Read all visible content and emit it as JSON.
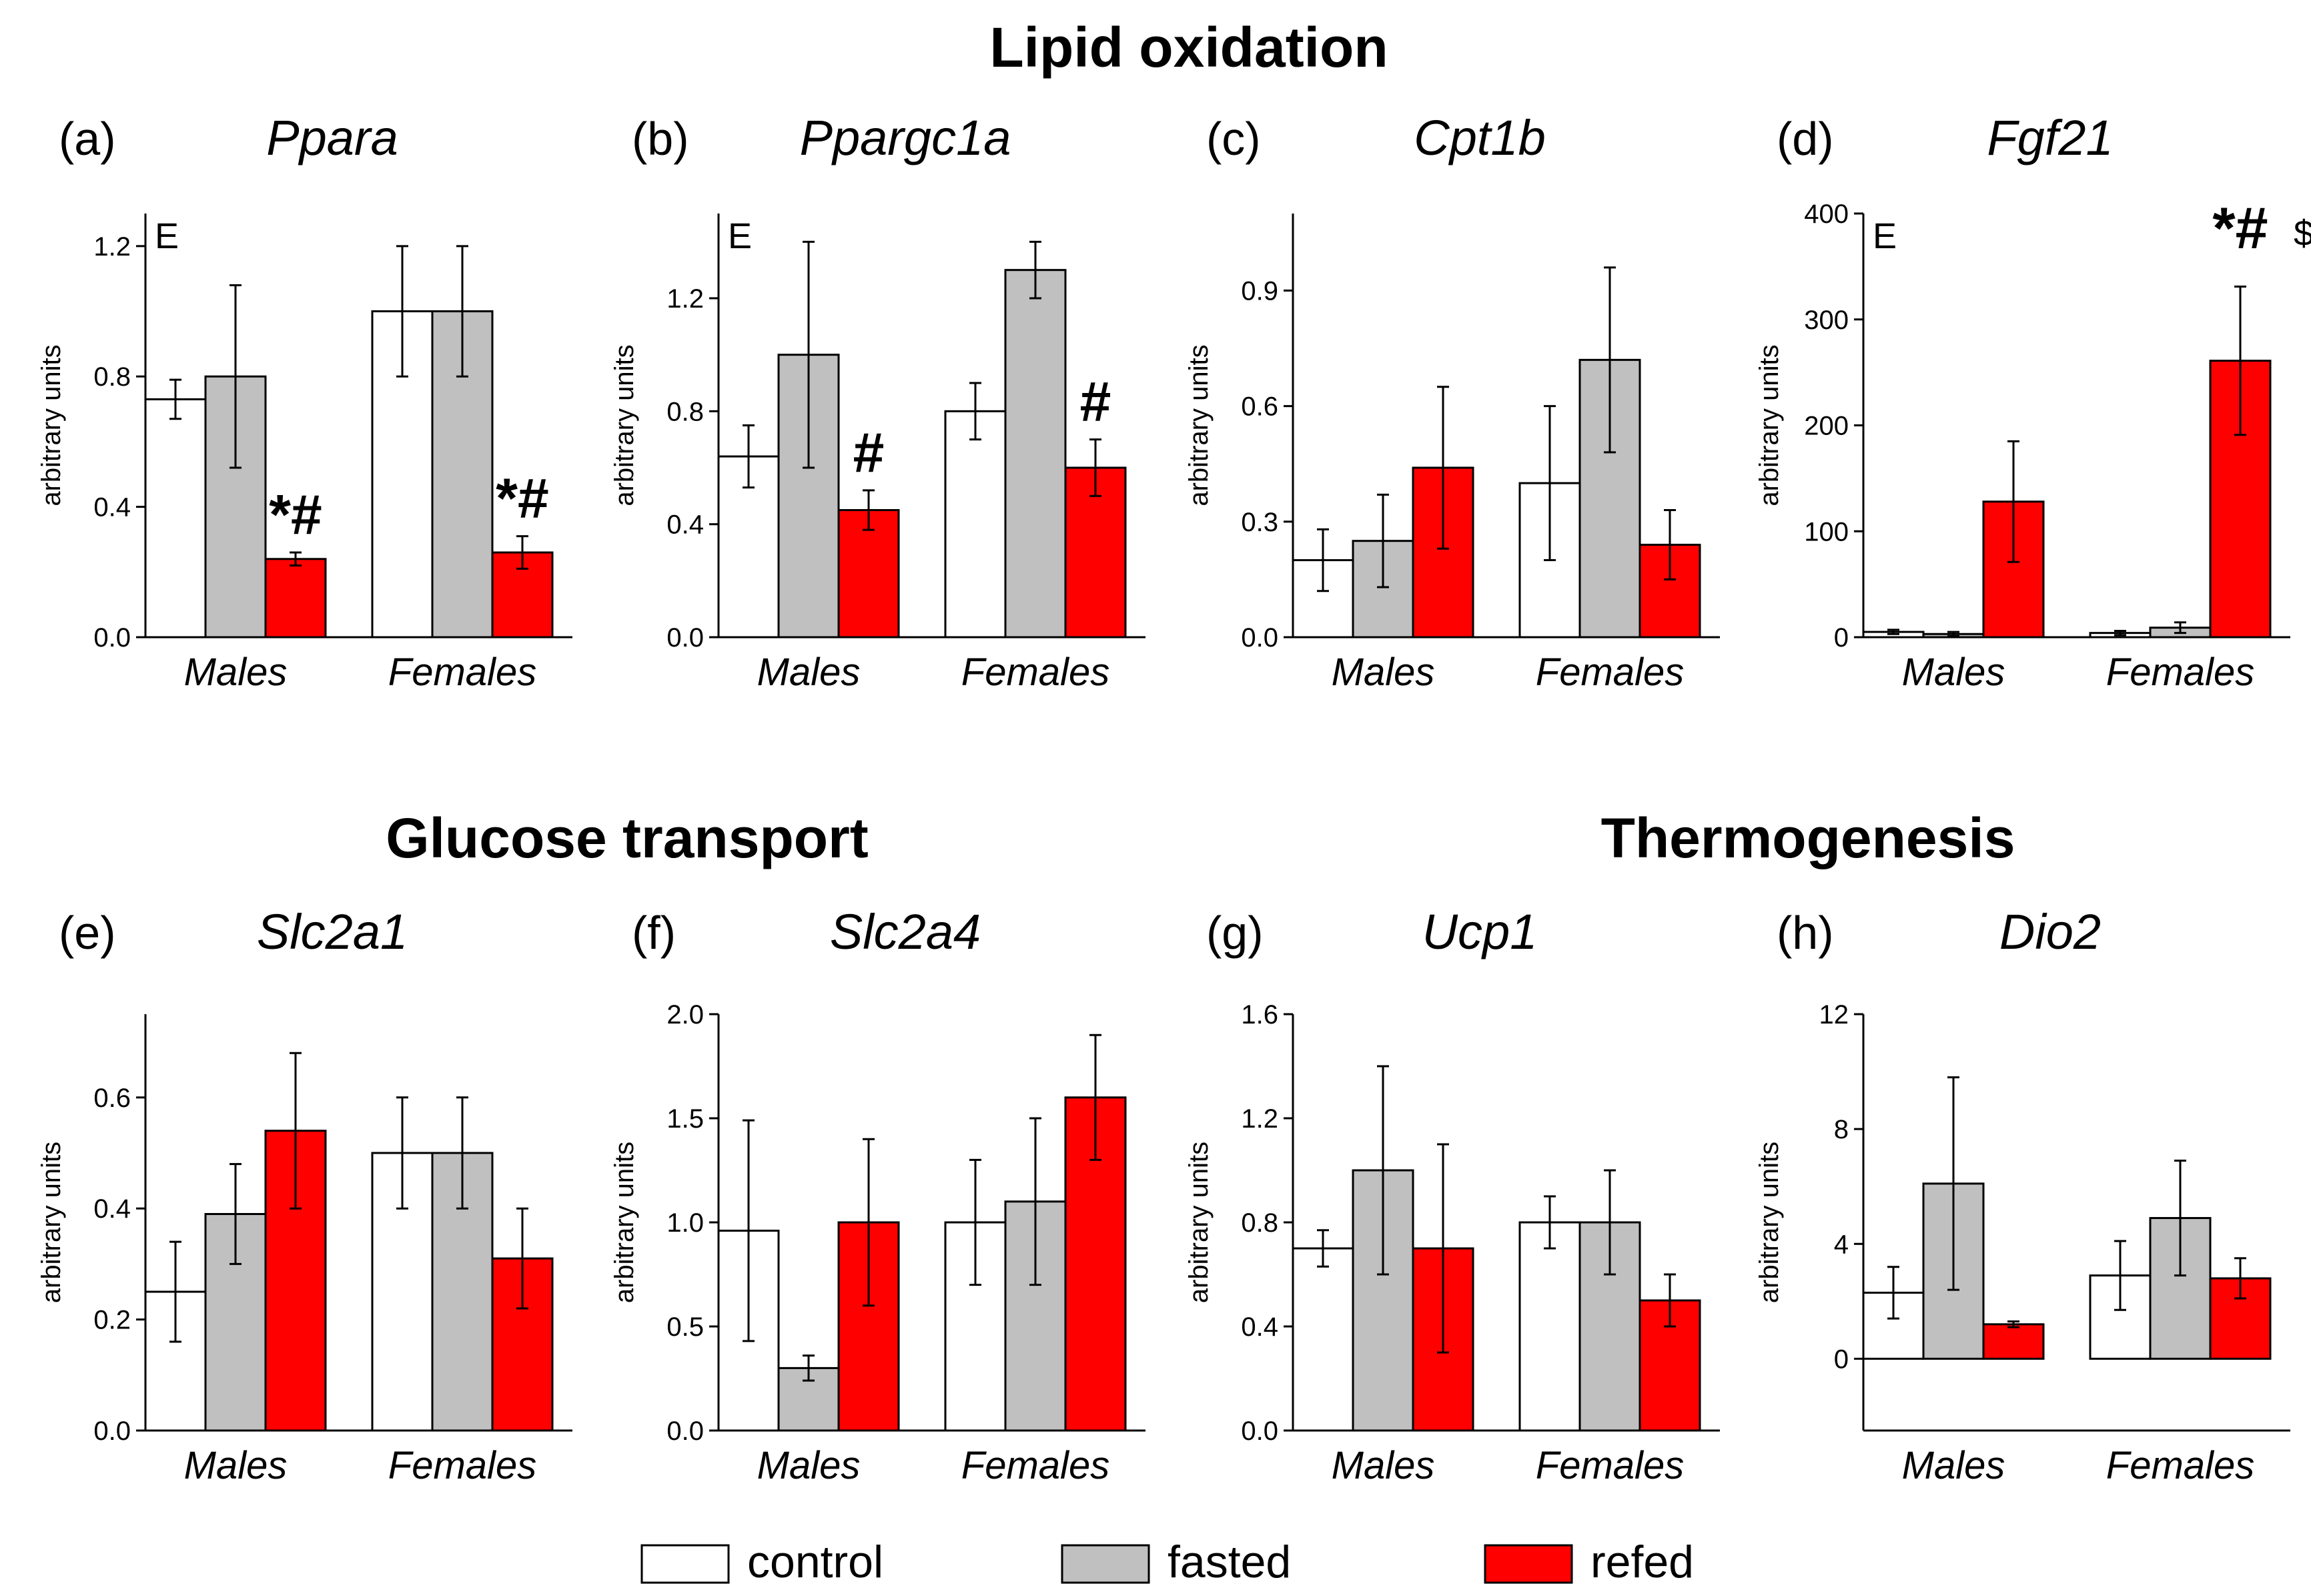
{
  "sections": {
    "lipid": "Lipid oxidation",
    "glucose": "Glucose transport",
    "thermo": "Thermogenesis"
  },
  "y_axis_label": "arbitrary units",
  "legend": [
    {
      "label": "control",
      "color": "#ffffff"
    },
    {
      "label": "fasted",
      "color": "#c0c0c0"
    },
    {
      "label": "refed",
      "color": "#ff0000"
    }
  ],
  "chart_data": [
    {
      "panel": "(a)",
      "title": "Ppara",
      "type": "bar",
      "categories": [
        "Males",
        "Females"
      ],
      "ylim": [
        0,
        1.3
      ],
      "yticks": [
        "0.0",
        "0.4",
        "0.8",
        "1.2"
      ],
      "effect_label": "E",
      "series": [
        {
          "name": "control",
          "values": [
            0.73,
            1.0
          ],
          "errors": [
            0.06,
            0.2
          ]
        },
        {
          "name": "fasted",
          "values": [
            0.8,
            1.0
          ],
          "errors": [
            0.28,
            0.2
          ]
        },
        {
          "name": "refed",
          "values": [
            0.24,
            0.26
          ],
          "errors": [
            0.02,
            0.05
          ]
        }
      ],
      "annotations": [
        {
          "category": "Males",
          "text": "*#"
        },
        {
          "category": "Females",
          "text": "*#"
        }
      ]
    },
    {
      "panel": "(b)",
      "title": "Ppargc1a",
      "type": "bar",
      "categories": [
        "Males",
        "Females"
      ],
      "ylim": [
        0,
        1.5
      ],
      "yticks": [
        "0.0",
        "0.4",
        "0.8",
        "1.2"
      ],
      "effect_label": "E",
      "series": [
        {
          "name": "control",
          "values": [
            0.64,
            0.8
          ],
          "errors": [
            0.11,
            0.1
          ]
        },
        {
          "name": "fasted",
          "values": [
            1.0,
            1.3
          ],
          "errors": [
            0.4,
            0.1
          ]
        },
        {
          "name": "refed",
          "values": [
            0.45,
            0.6
          ],
          "errors": [
            0.07,
            0.1
          ]
        }
      ],
      "annotations": [
        {
          "category": "Males",
          "text": "#"
        },
        {
          "category": "Females",
          "text": "#"
        }
      ]
    },
    {
      "panel": "(c)",
      "title": "Cpt1b",
      "type": "bar",
      "categories": [
        "Males",
        "Females"
      ],
      "ylim": [
        0,
        1.1
      ],
      "yticks": [
        "0.0",
        "0.3",
        "0.6",
        "0.9"
      ],
      "effect_label": "",
      "series": [
        {
          "name": "control",
          "values": [
            0.2,
            0.4
          ],
          "errors": [
            0.08,
            0.2
          ]
        },
        {
          "name": "fasted",
          "values": [
            0.25,
            0.72
          ],
          "errors": [
            0.12,
            0.24
          ]
        },
        {
          "name": "refed",
          "values": [
            0.44,
            0.24
          ],
          "errors": [
            0.21,
            0.09
          ]
        }
      ],
      "annotations": []
    },
    {
      "panel": "(d)",
      "title": "Fgf21",
      "type": "bar",
      "categories": [
        "Males",
        "Females"
      ],
      "ylim": [
        0,
        400
      ],
      "yticks": [
        "0",
        "100",
        "200",
        "300",
        "400"
      ],
      "effect_label": "E",
      "series": [
        {
          "name": "control",
          "values": [
            5,
            4
          ],
          "errors": [
            2,
            2
          ]
        },
        {
          "name": "fasted",
          "values": [
            3,
            9
          ],
          "errors": [
            2,
            5
          ]
        },
        {
          "name": "refed",
          "values": [
            128,
            261
          ],
          "errors": [
            57,
            70
          ]
        }
      ],
      "annotations": [
        {
          "category": "Females",
          "text": "*#",
          "suffix": "$"
        }
      ]
    },
    {
      "panel": "(e)",
      "title": "Slc2a1",
      "type": "bar",
      "categories": [
        "Males",
        "Females"
      ],
      "ylim": [
        0,
        0.75
      ],
      "yticks": [
        "0.0",
        "0.2",
        "0.4",
        "0.6"
      ],
      "effect_label": "",
      "series": [
        {
          "name": "control",
          "values": [
            0.25,
            0.5
          ],
          "errors": [
            0.09,
            0.1
          ]
        },
        {
          "name": "fasted",
          "values": [
            0.39,
            0.5
          ],
          "errors": [
            0.09,
            0.1
          ]
        },
        {
          "name": "refed",
          "values": [
            0.54,
            0.31
          ],
          "errors": [
            0.14,
            0.09
          ]
        }
      ],
      "annotations": []
    },
    {
      "panel": "(f)",
      "title": "Slc2a4",
      "type": "bar",
      "categories": [
        "Males",
        "Females"
      ],
      "ylim": [
        0,
        2.0
      ],
      "yticks": [
        "0.0",
        "0.5",
        "1.0",
        "1.5",
        "2.0"
      ],
      "effect_label": "",
      "series": [
        {
          "name": "control",
          "values": [
            0.96,
            1.0
          ],
          "errors": [
            0.53,
            0.3
          ]
        },
        {
          "name": "fasted",
          "values": [
            0.3,
            1.1
          ],
          "errors": [
            0.06,
            0.4
          ]
        },
        {
          "name": "refed",
          "values": [
            1.0,
            1.6
          ],
          "errors": [
            0.4,
            0.3
          ]
        }
      ],
      "annotations": []
    },
    {
      "panel": "(g)",
      "title": "Ucp1",
      "type": "bar",
      "categories": [
        "Males",
        "Females"
      ],
      "ylim": [
        0,
        1.6
      ],
      "yticks": [
        "0.0",
        "0.4",
        "0.8",
        "1.2",
        "1.6"
      ],
      "effect_label": "",
      "series": [
        {
          "name": "control",
          "values": [
            0.7,
            0.8
          ],
          "errors": [
            0.07,
            0.1
          ]
        },
        {
          "name": "fasted",
          "values": [
            1.0,
            0.8
          ],
          "errors": [
            0.4,
            0.2
          ]
        },
        {
          "name": "refed",
          "values": [
            0.7,
            0.5
          ],
          "errors": [
            0.4,
            0.1
          ]
        }
      ],
      "annotations": []
    },
    {
      "panel": "(h)",
      "title": "Dio2",
      "type": "bar",
      "categories": [
        "Males",
        "Females"
      ],
      "ylim": [
        -2.5,
        12
      ],
      "yticks": [
        "0",
        "4",
        "8",
        "12"
      ],
      "effect_label": "",
      "series": [
        {
          "name": "control",
          "values": [
            2.3,
            2.9
          ],
          "errors": [
            0.9,
            1.2
          ]
        },
        {
          "name": "fasted",
          "values": [
            6.1,
            4.9
          ],
          "errors": [
            3.7,
            2.0
          ]
        },
        {
          "name": "refed",
          "values": [
            1.2,
            2.8
          ],
          "errors": [
            0.1,
            0.7
          ]
        }
      ],
      "annotations": []
    }
  ]
}
